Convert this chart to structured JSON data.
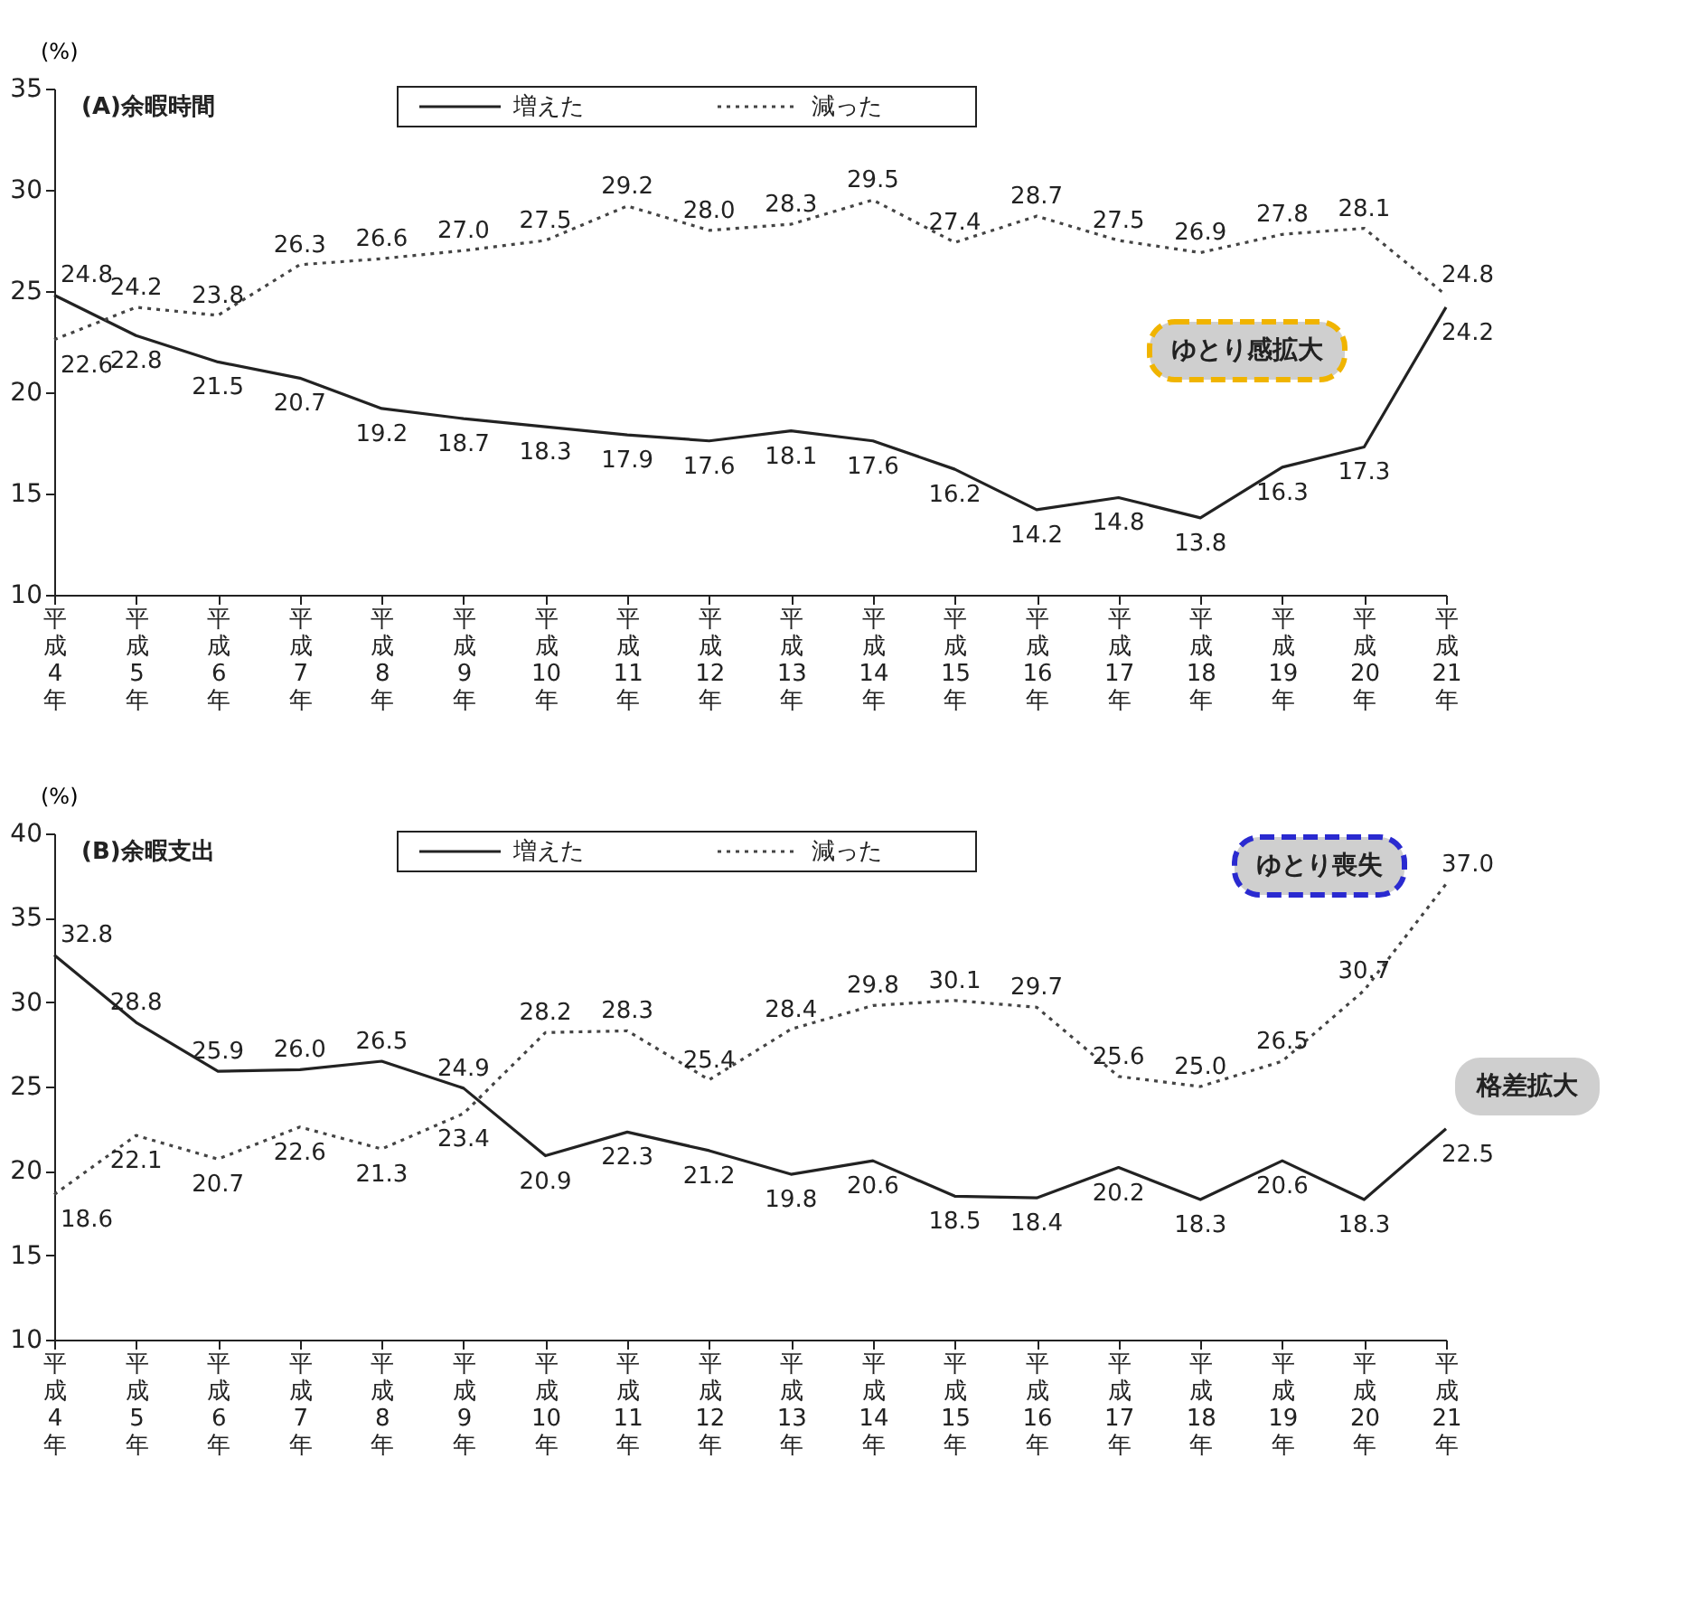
{
  "chart_data": [
    {
      "type": "line",
      "title": "(A)余暇時間",
      "ylabel": "(%)",
      "categories": [
        "平成4年",
        "平成5年",
        "平成6年",
        "平成7年",
        "平成8年",
        "平成9年",
        "平成10年",
        "平成11年",
        "平成12年",
        "平成13年",
        "平成14年",
        "平成15年",
        "平成16年",
        "平成17年",
        "平成18年",
        "平成19年",
        "平成20年",
        "平成21年"
      ],
      "series": [
        {
          "name": "増えた",
          "color": "#222222",
          "line_style": "solid",
          "values": [
            24.8,
            22.8,
            21.5,
            20.7,
            19.2,
            18.7,
            18.3,
            17.9,
            17.6,
            18.1,
            17.6,
            16.2,
            14.2,
            14.8,
            13.8,
            16.3,
            17.3,
            24.2
          ],
          "value_labels": [
            "24.8",
            "22.8",
            "21.5",
            "20.7",
            "19.2",
            "18.7",
            "18.3",
            "17.9",
            "17.6",
            "18.1",
            "17.6",
            "16.2",
            "14.2",
            "14.8",
            "13.8",
            "16.3",
            "17.3",
            "24.2"
          ]
        },
        {
          "name": "減った",
          "color": "#444444",
          "line_style": "dotted",
          "values": [
            22.6,
            24.2,
            23.8,
            26.3,
            26.6,
            27.0,
            27.5,
            29.2,
            28.0,
            28.3,
            29.5,
            27.4,
            28.7,
            27.5,
            26.9,
            27.8,
            28.1,
            24.8
          ],
          "value_labels": [
            "22.6",
            "24.2",
            "23.8",
            "26.3",
            "26.6",
            "27.0",
            "27.5",
            "29.2",
            "28.0",
            "28.3",
            "29.5",
            "27.4",
            "28.7",
            "27.5",
            "26.9",
            "27.8",
            "28.1",
            "24.8"
          ]
        }
      ],
      "ylim": [
        10,
        35
      ],
      "yticks": [
        10,
        15,
        20,
        25,
        30,
        35
      ],
      "grid": false,
      "legend": "top",
      "marker": "none",
      "annotations": [
        "ゆとり感拡大"
      ]
    },
    {
      "type": "line",
      "title": "(B)余暇支出",
      "ylabel": "(%)",
      "categories": [
        "平成4年",
        "平成5年",
        "平成6年",
        "平成7年",
        "平成8年",
        "平成9年",
        "平成10年",
        "平成11年",
        "平成12年",
        "平成13年",
        "平成14年",
        "平成15年",
        "平成16年",
        "平成17年",
        "平成18年",
        "平成19年",
        "平成20年",
        "平成21年"
      ],
      "series": [
        {
          "name": "増えた",
          "color": "#222222",
          "line_style": "solid",
          "values": [
            32.8,
            28.8,
            25.9,
            26.0,
            26.5,
            24.9,
            20.9,
            22.3,
            21.2,
            19.8,
            20.6,
            18.5,
            18.4,
            20.2,
            18.3,
            20.6,
            18.3,
            22.5
          ],
          "value_labels": [
            "32.8",
            "28.8",
            "25.9",
            "26.0",
            "26.5",
            "24.9",
            "20.9",
            "22.3",
            "21.2",
            "19.8",
            "20.6",
            "18.5",
            "18.4",
            "20.2",
            "18.3",
            "20.6",
            "18.3",
            "22.5"
          ]
        },
        {
          "name": "減った",
          "color": "#444444",
          "line_style": "dotted",
          "values": [
            18.6,
            22.1,
            20.7,
            22.6,
            21.3,
            23.4,
            28.2,
            28.3,
            25.4,
            28.4,
            29.8,
            30.1,
            29.7,
            25.6,
            25.0,
            26.5,
            30.7,
            37.0
          ],
          "value_labels": [
            "18.6",
            "22.1",
            "20.7",
            "22.6",
            "21.3",
            "23.4",
            "28.2",
            "28.3",
            "25.4",
            "28.4",
            "29.8",
            "30.1",
            "29.7",
            "25.6",
            "25.0",
            "26.5",
            "30.7",
            "37.0"
          ]
        }
      ],
      "ylim": [
        10,
        40
      ],
      "yticks": [
        10,
        15,
        20,
        25,
        30,
        35,
        40
      ],
      "grid": false,
      "legend": "top",
      "marker": "none",
      "annotations": [
        "ゆとり喪失",
        "格差拡大"
      ]
    }
  ]
}
